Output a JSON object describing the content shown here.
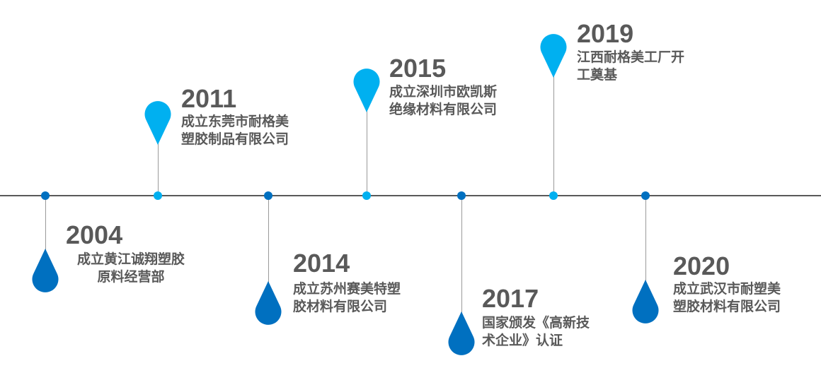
{
  "colors": {
    "dark_blue": "#0070c0",
    "light_blue": "#00b0f0",
    "text": "#595959",
    "axis": "#595959"
  },
  "events": [
    {
      "year": "2004",
      "lines": [
        "成立黄江诚翔塑胶",
        "原料经营部"
      ],
      "marker": "drop-below",
      "color": "dark_blue"
    },
    {
      "year": "2011",
      "lines": [
        "成立东莞市耐格美",
        "塑胶制品有限公司"
      ],
      "marker": "pin-above",
      "color": "light_blue"
    },
    {
      "year": "2014",
      "lines": [
        "成立苏州赛美特塑",
        "胶材料有限公司"
      ],
      "marker": "drop-below",
      "color": "dark_blue"
    },
    {
      "year": "2015",
      "lines": [
        "成立深圳市欧凯斯",
        "绝缘材料有限公司"
      ],
      "marker": "pin-above",
      "color": "light_blue"
    },
    {
      "year": "2017",
      "lines": [
        "国家颁发《高新技",
        "术企业》认证"
      ],
      "marker": "drop-below",
      "color": "dark_blue"
    },
    {
      "year": "2019",
      "lines": [
        "江西耐格美工厂开",
        "工奠基"
      ],
      "marker": "pin-above",
      "color": "light_blue"
    },
    {
      "year": "2020",
      "lines": [
        "成立武汉市耐塑美",
        "塑胶材料有限公司"
      ],
      "marker": "drop-below",
      "color": "dark_blue"
    }
  ]
}
